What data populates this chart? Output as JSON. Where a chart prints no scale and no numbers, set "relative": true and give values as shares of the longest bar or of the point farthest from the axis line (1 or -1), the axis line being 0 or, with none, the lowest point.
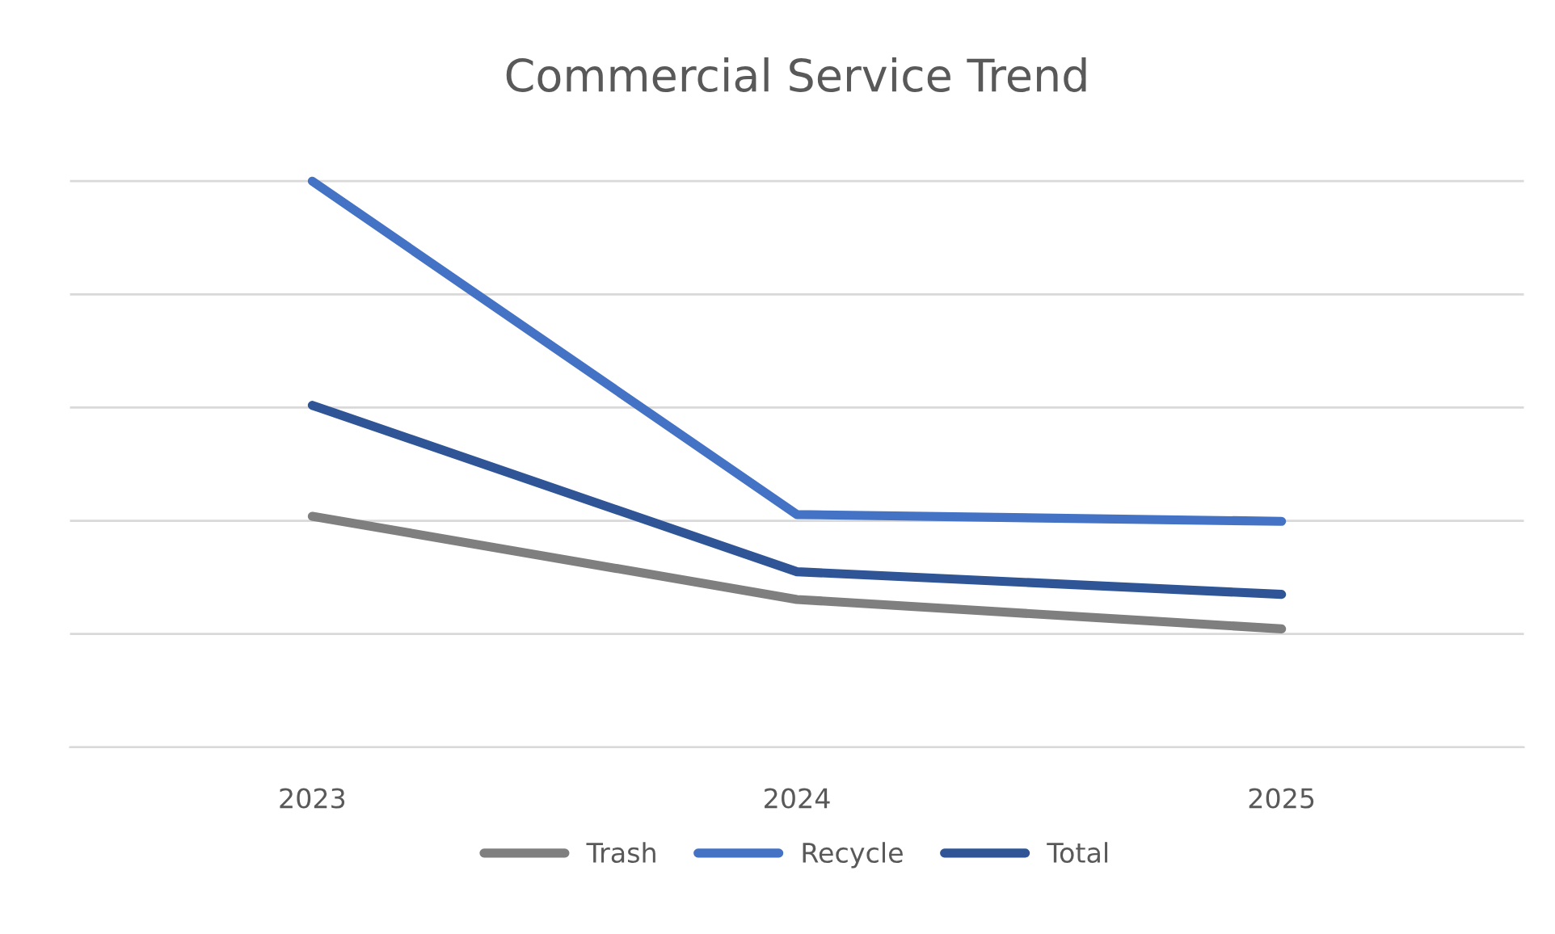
{
  "chart_data": {
    "type": "line",
    "title": "Commercial Service Trend",
    "relative": true,
    "categories": [
      "2023",
      "2024",
      "2025"
    ],
    "series": [
      {
        "name": "Trash",
        "color": "#7f7f7f",
        "values": [
          0.408,
          0.261,
          0.209
        ]
      },
      {
        "name": "Recycle",
        "color": "#4472c4",
        "values": [
          1,
          0.411,
          0.399
        ]
      },
      {
        "name": "Total",
        "color": "#2f5597",
        "values": [
          0.604,
          0.31,
          0.27
        ]
      }
    ],
    "grid": "y",
    "legend": "bottom",
    "marker": "none",
    "line_style": "solid"
  }
}
